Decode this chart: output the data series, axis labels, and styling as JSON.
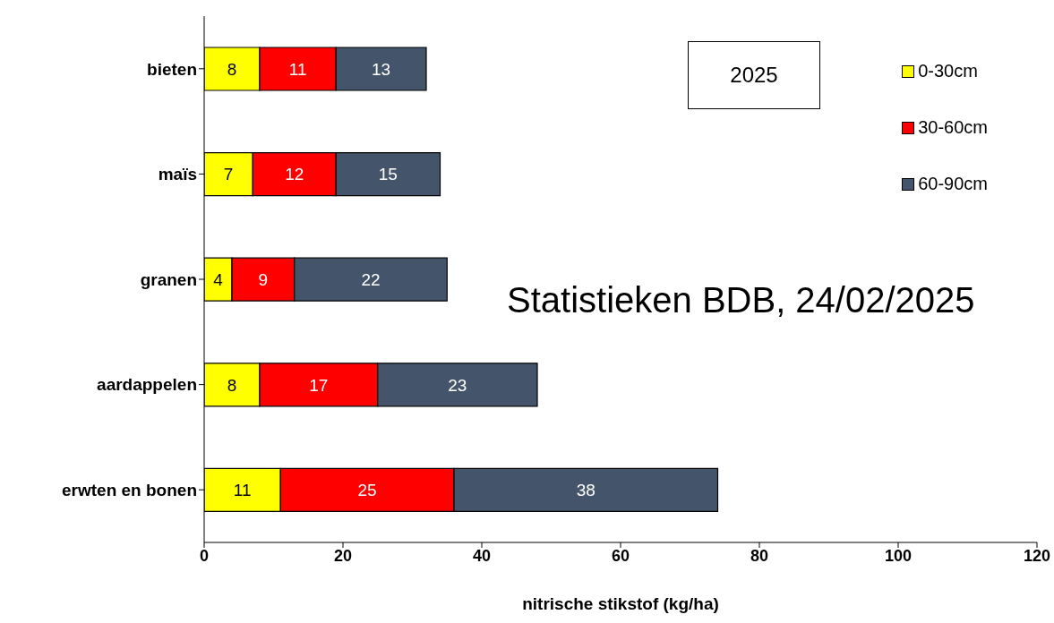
{
  "chart_data": {
    "type": "bar",
    "orientation": "horizontal",
    "stacked": true,
    "categories": [
      "bieten",
      "maïs",
      "granen",
      "aardappelen",
      "erwten en bonen"
    ],
    "series": [
      {
        "name": "0-30cm",
        "color": "#ffff00",
        "values": [
          8,
          7,
          4,
          8,
          11
        ]
      },
      {
        "name": "30-60cm",
        "color": "#ff0000",
        "values": [
          11,
          12,
          9,
          17,
          25
        ]
      },
      {
        "name": "60-90cm",
        "color": "#44546a",
        "values": [
          13,
          15,
          22,
          23,
          38
        ]
      }
    ],
    "xlabel": "nitrische stikstof (kg/ha)",
    "xlim": [
      0,
      120
    ],
    "xticks": [
      0,
      20,
      40,
      60,
      80,
      100,
      120
    ],
    "annotations": [
      "2025",
      "Statistieken BDB, 24/02/2025"
    ],
    "data_labels": true,
    "legend": "top right",
    "grid": false
  }
}
